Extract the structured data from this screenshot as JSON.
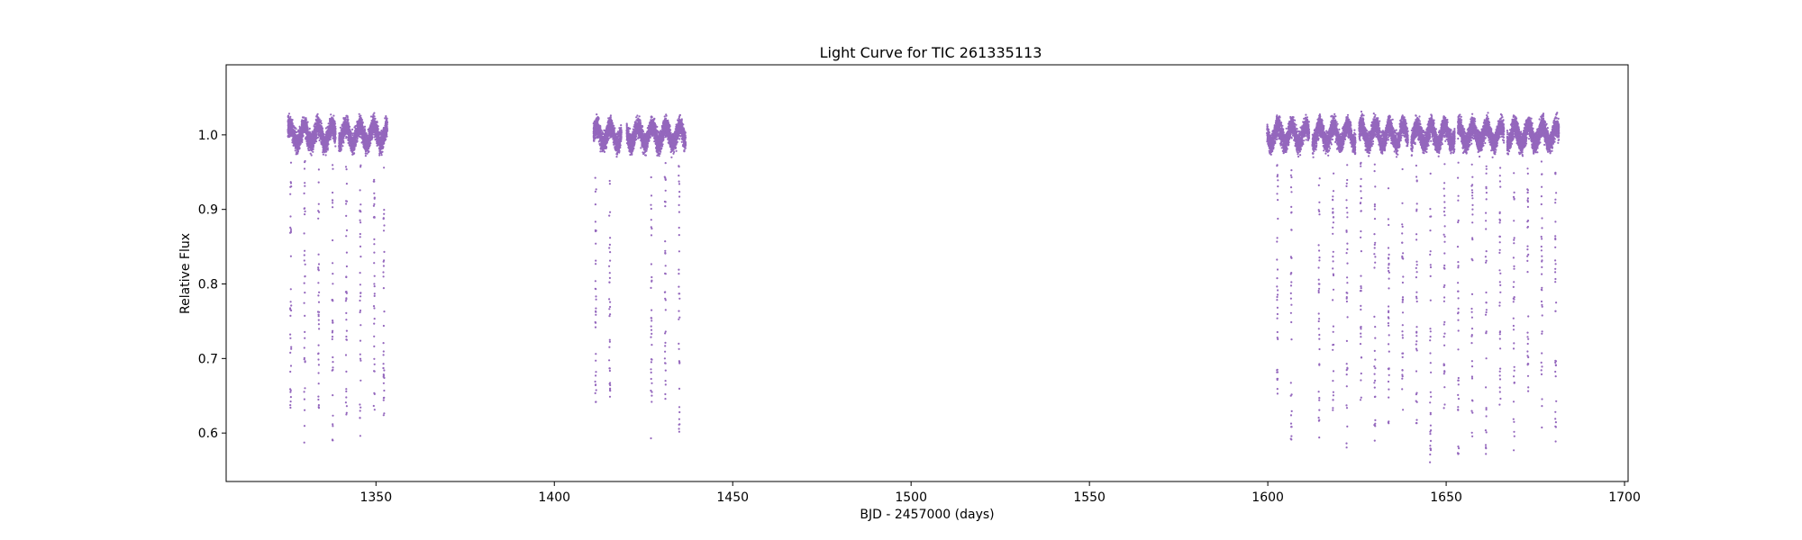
{
  "chart_data": {
    "type": "scatter",
    "title": "Light Curve for TIC 261335113",
    "xlabel": "BJD - 2457000 (days)",
    "ylabel": "Relative Flux",
    "xlim": [
      1308,
      1701
    ],
    "ylim": [
      0.535,
      1.094
    ],
    "xticks": [
      1350,
      1400,
      1450,
      1500,
      1550,
      1600,
      1650,
      1700
    ],
    "yticks": [
      0.6,
      0.7,
      0.8,
      0.9,
      1.0
    ],
    "grid": false,
    "point_color": "#9467bd",
    "baseline_flux": 1.0,
    "segments": [
      {
        "start": 1325.3,
        "end": 1338.7
      },
      {
        "start": 1339.6,
        "end": 1353.2
      },
      {
        "start": 1411.0,
        "end": 1418.8
      },
      {
        "start": 1420.3,
        "end": 1436.8
      },
      {
        "start": 1599.8,
        "end": 1611.6
      },
      {
        "start": 1612.5,
        "end": 1624.6
      },
      {
        "start": 1625.6,
        "end": 1639.3
      },
      {
        "start": 1640.2,
        "end": 1652.4
      },
      {
        "start": 1653.3,
        "end": 1666.2
      },
      {
        "start": 1667.1,
        "end": 1681.6
      }
    ],
    "eclipses": [
      {
        "t": 1326.1,
        "min_flux": 0.62
      },
      {
        "t": 1330.0,
        "min_flux": 0.58
      },
      {
        "t": 1333.9,
        "min_flux": 0.63
      },
      {
        "t": 1337.8,
        "min_flux": 0.59
      },
      {
        "t": 1341.7,
        "min_flux": 0.62
      },
      {
        "t": 1345.6,
        "min_flux": 0.59
      },
      {
        "t": 1349.5,
        "min_flux": 0.63
      },
      {
        "t": 1352.2,
        "min_flux": 0.61
      },
      {
        "t": 1411.6,
        "min_flux": 0.64
      },
      {
        "t": 1415.5,
        "min_flux": 0.64
      },
      {
        "t": 1427.2,
        "min_flux": 0.59
      },
      {
        "t": 1431.1,
        "min_flux": 0.64
      },
      {
        "t": 1435.0,
        "min_flux": 0.6
      },
      {
        "t": 1602.7,
        "min_flux": 0.64
      },
      {
        "t": 1606.6,
        "min_flux": 0.59
      },
      {
        "t": 1614.4,
        "min_flux": 0.59
      },
      {
        "t": 1618.3,
        "min_flux": 0.62
      },
      {
        "t": 1622.2,
        "min_flux": 0.58
      },
      {
        "t": 1626.1,
        "min_flux": 0.63
      },
      {
        "t": 1630.0,
        "min_flux": 0.58
      },
      {
        "t": 1633.9,
        "min_flux": 0.61
      },
      {
        "t": 1637.8,
        "min_flux": 0.62
      },
      {
        "t": 1641.7,
        "min_flux": 0.61
      },
      {
        "t": 1645.6,
        "min_flux": 0.56
      },
      {
        "t": 1649.5,
        "min_flux": 0.6
      },
      {
        "t": 1653.4,
        "min_flux": 0.57
      },
      {
        "t": 1657.3,
        "min_flux": 0.59
      },
      {
        "t": 1661.2,
        "min_flux": 0.56
      },
      {
        "t": 1665.1,
        "min_flux": 0.62
      },
      {
        "t": 1669.0,
        "min_flux": 0.57
      },
      {
        "t": 1672.9,
        "min_flux": 0.62
      },
      {
        "t": 1676.8,
        "min_flux": 0.6
      },
      {
        "t": 1680.7,
        "min_flux": 0.58
      }
    ]
  }
}
